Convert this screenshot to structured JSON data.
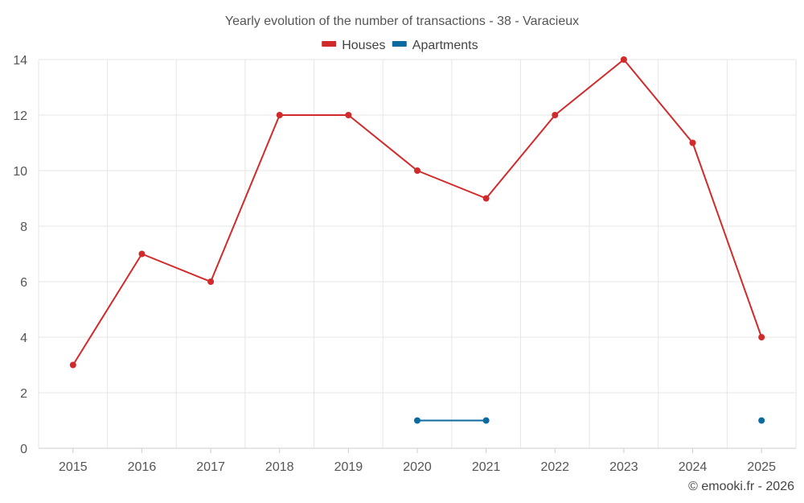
{
  "chart_data": {
    "type": "line",
    "title": "Yearly evolution of the number of transactions - 38 - Varacieux",
    "categories": [
      "2015",
      "2016",
      "2017",
      "2018",
      "2019",
      "2020",
      "2021",
      "2022",
      "2023",
      "2024",
      "2025"
    ],
    "ylim": [
      0,
      14
    ],
    "yticks": [
      "0",
      "2",
      "4",
      "6",
      "8",
      "10",
      "12",
      "14"
    ],
    "grid": true,
    "legend_position": "top-center",
    "series": [
      {
        "name": "Houses",
        "color": "#d12a2a",
        "values": [
          3,
          7,
          6,
          12,
          12,
          10,
          9,
          12,
          14,
          11,
          4
        ]
      },
      {
        "name": "Apartments",
        "color": "#0b6ba0",
        "values": [
          null,
          null,
          null,
          null,
          null,
          1,
          1,
          null,
          null,
          null,
          1
        ]
      }
    ]
  },
  "credit": "© emooki.fr - 2026"
}
